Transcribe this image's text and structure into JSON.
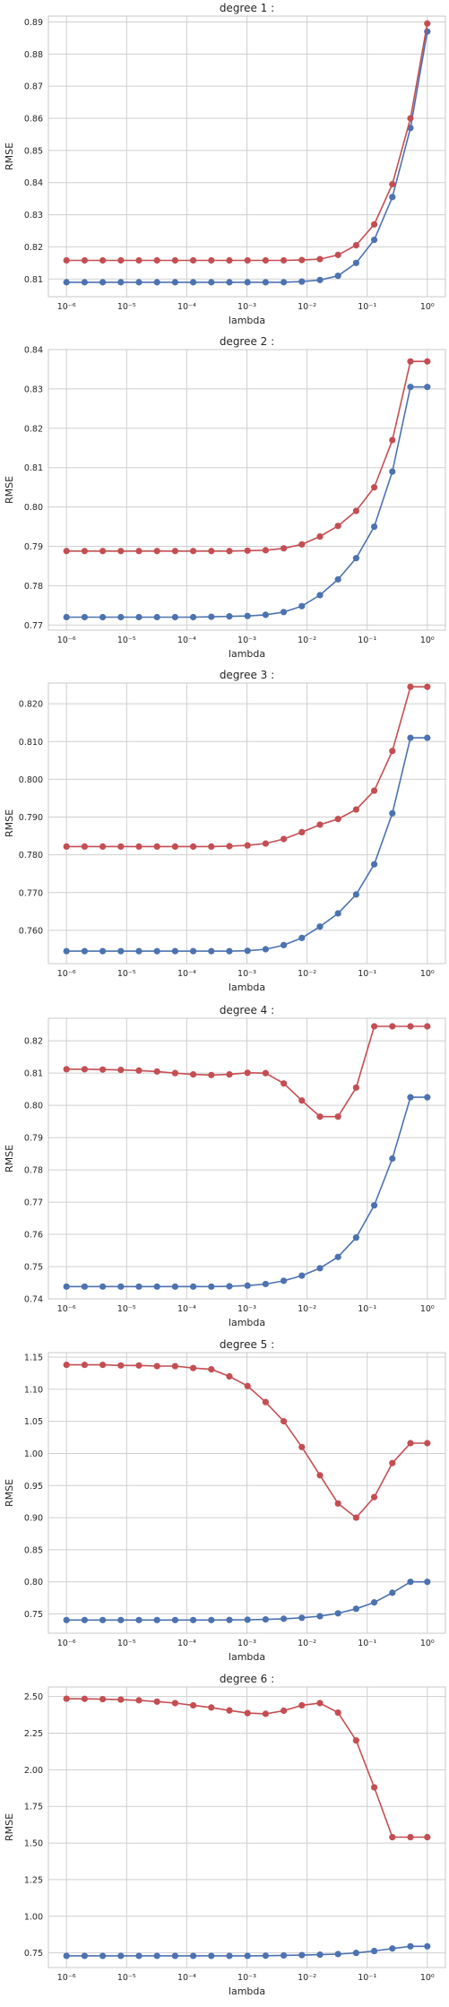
{
  "chart_data": [
    {
      "type": "line",
      "title": "degree 1 :",
      "xlabel": "lambda",
      "ylabel": "RMSE",
      "xscale": "log",
      "xlim": [
        5e-07,
        2
      ],
      "ylim": [
        0.8045,
        0.8918
      ],
      "x": [
        1e-06,
        2e-06,
        4e-06,
        8e-06,
        1.6e-05,
        3.2e-05,
        6.4e-05,
        0.000128,
        0.000256,
        0.000512,
        0.001024,
        0.002048,
        0.004096,
        0.008192,
        0.016384,
        0.032768,
        0.065536,
        0.131072,
        0.262144,
        0.524288,
        1.0
      ],
      "xticks": [
        "10⁻⁶",
        "10⁻⁵",
        "10⁻⁴",
        "10⁻³",
        "10⁻²",
        "10⁻¹",
        "10⁰"
      ],
      "yticks": [
        "0.81",
        "0.82",
        "0.83",
        "0.84",
        "0.85",
        "0.86",
        "0.87",
        "0.88",
        "0.89"
      ],
      "grid": true,
      "series": [
        {
          "color": "#4c72b0",
          "values": [
            0.809,
            0.809,
            0.809,
            0.809,
            0.809,
            0.809,
            0.809,
            0.809,
            0.809,
            0.809,
            0.809,
            0.809,
            0.809,
            0.8092,
            0.8097,
            0.811,
            0.815,
            0.8222,
            0.8355,
            0.857,
            0.887
          ]
        },
        {
          "color": "#c44e52",
          "values": [
            0.8158,
            0.8158,
            0.8158,
            0.8158,
            0.8158,
            0.8158,
            0.8158,
            0.8158,
            0.8158,
            0.8158,
            0.8158,
            0.8158,
            0.8158,
            0.8159,
            0.8162,
            0.8175,
            0.8205,
            0.827,
            0.8395,
            0.86,
            0.8895
          ]
        }
      ]
    },
    {
      "type": "line",
      "title": "degree 2 :",
      "xlabel": "lambda",
      "ylabel": "RMSE",
      "xscale": "log",
      "xlim": [
        5e-07,
        2
      ],
      "ylim": [
        0.7687,
        0.84
      ],
      "x": [
        1e-06,
        2e-06,
        4e-06,
        8e-06,
        1.6e-05,
        3.2e-05,
        6.4e-05,
        0.000128,
        0.000256,
        0.000512,
        0.001024,
        0.002048,
        0.004096,
        0.008192,
        0.016384,
        0.032768,
        0.065536,
        0.131072,
        0.262144,
        0.524288,
        1.0
      ],
      "xticks": [
        "10⁻⁶",
        "10⁻⁵",
        "10⁻⁴",
        "10⁻³",
        "10⁻²",
        "10⁻¹",
        "10⁰"
      ],
      "yticks": [
        "0.77",
        "0.78",
        "0.79",
        "0.80",
        "0.81",
        "0.82",
        "0.83",
        "0.84"
      ],
      "grid": true,
      "series": [
        {
          "color": "#4c72b0",
          "values": [
            0.772,
            0.772,
            0.772,
            0.772,
            0.772,
            0.772,
            0.772,
            0.772,
            0.7721,
            0.7722,
            0.7723,
            0.7726,
            0.7733,
            0.7748,
            0.7776,
            0.7816,
            0.787,
            0.795,
            0.809,
            0.8305,
            0.8305
          ]
        },
        {
          "color": "#c44e52",
          "values": [
            0.7888,
            0.7888,
            0.7888,
            0.7888,
            0.7888,
            0.7888,
            0.7888,
            0.7888,
            0.7888,
            0.7888,
            0.7889,
            0.789,
            0.7895,
            0.7905,
            0.7925,
            0.7952,
            0.799,
            0.805,
            0.817,
            0.837,
            0.837
          ]
        }
      ]
    },
    {
      "type": "line",
      "title": "degree 3 :",
      "xlabel": "lambda",
      "ylabel": "RMSE",
      "xscale": "log",
      "xlim": [
        5e-07,
        2
      ],
      "ylim": [
        0.7512,
        0.8255
      ],
      "x": [
        1e-06,
        2e-06,
        4e-06,
        8e-06,
        1.6e-05,
        3.2e-05,
        6.4e-05,
        0.000128,
        0.000256,
        0.000512,
        0.001024,
        0.002048,
        0.004096,
        0.008192,
        0.016384,
        0.032768,
        0.065536,
        0.131072,
        0.262144,
        0.524288,
        1.0
      ],
      "xticks": [
        "10⁻⁶",
        "10⁻⁵",
        "10⁻⁴",
        "10⁻³",
        "10⁻²",
        "10⁻¹",
        "10⁰"
      ],
      "yticks": [
        "0.760",
        "0.770",
        "0.780",
        "0.790",
        "0.800",
        "0.810",
        "0.820"
      ],
      "grid": true,
      "series": [
        {
          "color": "#4c72b0",
          "values": [
            0.7545,
            0.7545,
            0.7545,
            0.7545,
            0.7545,
            0.7545,
            0.7545,
            0.7545,
            0.7545,
            0.7545,
            0.7546,
            0.755,
            0.7561,
            0.758,
            0.761,
            0.7645,
            0.7695,
            0.7775,
            0.791,
            0.811,
            0.811
          ]
        },
        {
          "color": "#c44e52",
          "values": [
            0.7822,
            0.7822,
            0.7822,
            0.7822,
            0.7822,
            0.7822,
            0.7822,
            0.7822,
            0.7822,
            0.7823,
            0.7825,
            0.783,
            0.7842,
            0.786,
            0.788,
            0.7895,
            0.792,
            0.797,
            0.8075,
            0.8245,
            0.8245
          ]
        }
      ]
    },
    {
      "type": "line",
      "title": "degree 4 :",
      "xlabel": "lambda",
      "ylabel": "RMSE",
      "xscale": "log",
      "xlim": [
        5e-07,
        2
      ],
      "ylim": [
        0.74,
        0.827
      ],
      "x": [
        1e-06,
        2e-06,
        4e-06,
        8e-06,
        1.6e-05,
        3.2e-05,
        6.4e-05,
        0.000128,
        0.000256,
        0.000512,
        0.001024,
        0.002048,
        0.004096,
        0.008192,
        0.016384,
        0.032768,
        0.065536,
        0.131072,
        0.262144,
        0.524288,
        1.0
      ],
      "xticks": [
        "10⁻⁶",
        "10⁻⁵",
        "10⁻⁴",
        "10⁻³",
        "10⁻²",
        "10⁻¹",
        "10⁰"
      ],
      "yticks": [
        "0.74",
        "0.75",
        "0.76",
        "0.77",
        "0.78",
        "0.79",
        "0.80",
        "0.81",
        "0.82"
      ],
      "grid": true,
      "series": [
        {
          "color": "#4c72b0",
          "values": [
            0.7438,
            0.7438,
            0.7438,
            0.7438,
            0.7438,
            0.7438,
            0.7438,
            0.7438,
            0.7438,
            0.7439,
            0.7441,
            0.7446,
            0.7456,
            0.7472,
            0.7495,
            0.753,
            0.759,
            0.769,
            0.7835,
            0.8025,
            0.8025
          ]
        },
        {
          "color": "#c44e52",
          "values": [
            0.8112,
            0.8112,
            0.8111,
            0.811,
            0.8108,
            0.8105,
            0.81,
            0.8096,
            0.8094,
            0.8096,
            0.8101,
            0.81,
            0.8068,
            0.8015,
            0.7965,
            0.7965,
            0.8055,
            0.8245,
            0.8245,
            0.8245,
            0.8245
          ]
        }
      ]
    },
    {
      "type": "line",
      "title": "degree 5 :",
      "xlabel": "lambda",
      "ylabel": "RMSE",
      "xscale": "log",
      "xlim": [
        5e-07,
        2
      ],
      "ylim": [
        0.72,
        1.157
      ],
      "x": [
        1e-06,
        2e-06,
        4e-06,
        8e-06,
        1.6e-05,
        3.2e-05,
        6.4e-05,
        0.000128,
        0.000256,
        0.000512,
        0.001024,
        0.002048,
        0.004096,
        0.008192,
        0.016384,
        0.032768,
        0.065536,
        0.131072,
        0.262144,
        0.524288,
        1.0
      ],
      "xticks": [
        "10⁻⁶",
        "10⁻⁵",
        "10⁻⁴",
        "10⁻³",
        "10⁻²",
        "10⁻¹",
        "10⁰"
      ],
      "yticks": [
        "0.75",
        "0.80",
        "0.85",
        "0.90",
        "0.95",
        "1.00",
        "1.05",
        "1.10",
        "1.15"
      ],
      "grid": true,
      "series": [
        {
          "color": "#4c72b0",
          "values": [
            0.7405,
            0.7405,
            0.7405,
            0.7405,
            0.7405,
            0.7405,
            0.7405,
            0.7405,
            0.7405,
            0.7407,
            0.741,
            0.7415,
            0.7425,
            0.744,
            0.7465,
            0.751,
            0.758,
            0.768,
            0.783,
            0.8,
            0.8
          ]
        },
        {
          "color": "#c44e52",
          "values": [
            1.138,
            1.138,
            1.138,
            1.137,
            1.137,
            1.136,
            1.136,
            1.133,
            1.131,
            1.12,
            1.105,
            1.08,
            1.05,
            1.01,
            0.966,
            0.922,
            0.9,
            0.932,
            0.985,
            1.016,
            1.016
          ]
        }
      ]
    },
    {
      "type": "line",
      "title": "degree 6 :",
      "xlabel": "lambda",
      "ylabel": "RMSE",
      "xscale": "log",
      "xlim": [
        5e-07,
        2
      ],
      "ylim": [
        0.65,
        2.565
      ],
      "x": [
        1e-06,
        2e-06,
        4e-06,
        8e-06,
        1.6e-05,
        3.2e-05,
        6.4e-05,
        0.000128,
        0.000256,
        0.000512,
        0.001024,
        0.002048,
        0.004096,
        0.008192,
        0.016384,
        0.032768,
        0.065536,
        0.131072,
        0.262144,
        0.524288,
        1.0
      ],
      "xticks": [
        "10⁻⁶",
        "10⁻⁵",
        "10⁻⁴",
        "10⁻³",
        "10⁻²",
        "10⁻¹",
        "10⁰"
      ],
      "yticks": [
        "0.75",
        "1.00",
        "1.25",
        "1.50",
        "1.75",
        "2.00",
        "2.25",
        "2.50"
      ],
      "grid": true,
      "series": [
        {
          "color": "#4c72b0",
          "values": [
            0.73,
            0.73,
            0.73,
            0.73,
            0.73,
            0.73,
            0.73,
            0.73,
            0.73,
            0.73,
            0.73,
            0.731,
            0.733,
            0.735,
            0.738,
            0.742,
            0.75,
            0.763,
            0.78,
            0.795,
            0.795
          ]
        },
        {
          "color": "#c44e52",
          "values": [
            2.485,
            2.484,
            2.482,
            2.479,
            2.474,
            2.465,
            2.455,
            2.44,
            2.425,
            2.405,
            2.387,
            2.382,
            2.403,
            2.44,
            2.455,
            2.39,
            2.2,
            1.88,
            1.54,
            1.54,
            1.54
          ]
        }
      ]
    }
  ]
}
